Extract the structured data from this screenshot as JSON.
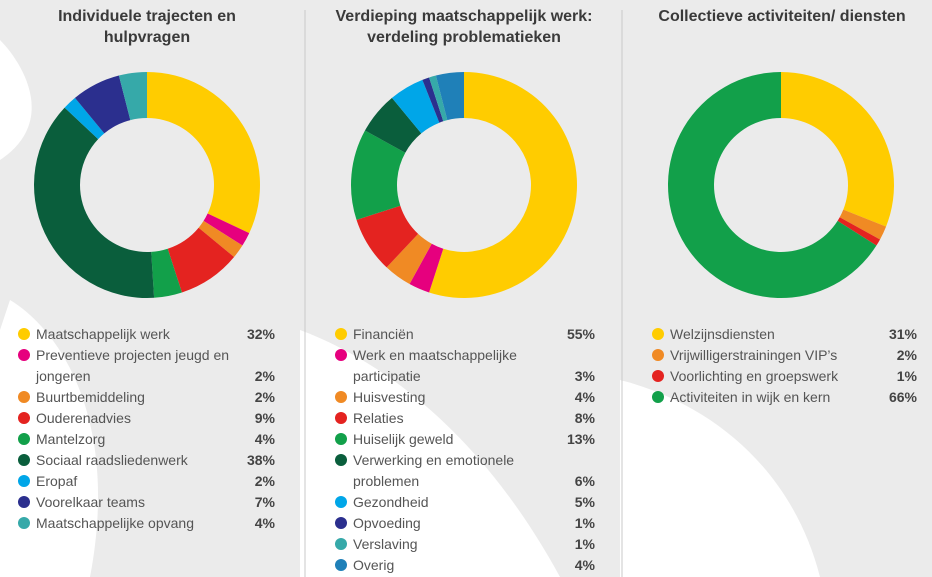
{
  "chart_data": [
    {
      "type": "pie",
      "title": "Individuele trajecten en hulpvragen",
      "categories": [
        "Maatschappelijk werk",
        "Preventieve projecten jeugd en jongeren",
        "Buurtbemiddeling",
        "Ouderenadvies",
        "Mantelzorg",
        "Sociaal raadsliedenwerk",
        "Eropaf",
        "Voorelkaar teams",
        "Maatschappelijke opvang"
      ],
      "values": [
        32,
        2,
        2,
        9,
        4,
        38,
        2,
        7,
        4
      ],
      "value_labels": [
        "32%",
        "2%",
        "2%",
        "9%",
        "4%",
        "38%",
        "2%",
        "7%",
        "4%"
      ],
      "colors": [
        "#ffcc00",
        "#e6007e",
        "#f08a24",
        "#e42320",
        "#12a04a",
        "#0a5e3c",
        "#00a6e8",
        "#2b2f8e",
        "#36a9a9"
      ]
    },
    {
      "type": "pie",
      "title": "Verdieping maatschappelijk werk: verdeling problematieken",
      "categories": [
        "Financiën",
        "Werk en maatschappelijke participatie",
        "Huisvesting",
        "Relaties",
        "Huiselijk geweld",
        "Verwerking en emotionele problemen",
        "Gezondheid",
        "Opvoeding",
        "Verslaving",
        "Overig"
      ],
      "values": [
        55,
        3,
        4,
        8,
        13,
        6,
        5,
        1,
        1,
        4
      ],
      "value_labels": [
        "55%",
        "3%",
        "4%",
        "8%",
        "13%",
        "6%",
        "5%",
        "1%",
        "1%",
        "4%"
      ],
      "colors": [
        "#ffcc00",
        "#e6007e",
        "#f08a24",
        "#e42320",
        "#12a04a",
        "#0a5e3c",
        "#00a6e8",
        "#2b2f8e",
        "#36a9a9",
        "#1f80b8"
      ]
    },
    {
      "type": "pie",
      "title": "Collectieve activiteiten/ diensten",
      "categories": [
        "Welzijnsdiensten",
        "Vrijwilligerstrainingen VIP’s",
        "Voorlichting en groepswerk",
        "Activiteiten in wijk en kern"
      ],
      "values": [
        31,
        2,
        1,
        66
      ],
      "value_labels": [
        "31%",
        "2%",
        "1%",
        "66%"
      ],
      "colors": [
        "#ffcc00",
        "#f08a24",
        "#e42320",
        "#12a04a"
      ]
    }
  ]
}
